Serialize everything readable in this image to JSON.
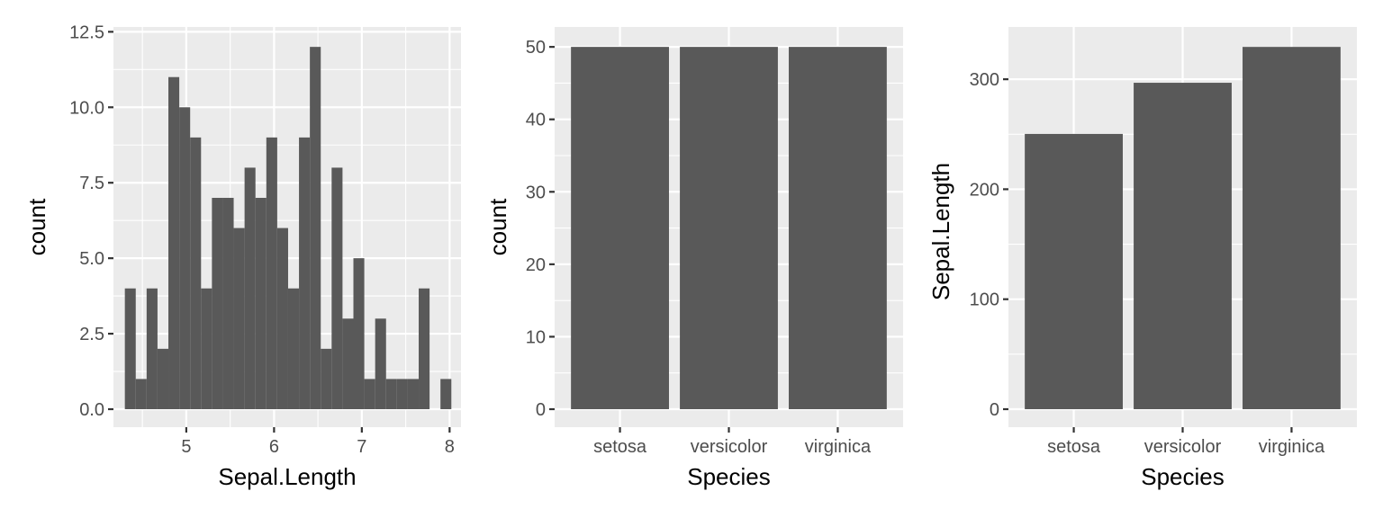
{
  "chart_data": [
    {
      "type": "bar",
      "subtype": "histogram",
      "xlabel": "Sepal.Length",
      "ylabel": "count",
      "xlim": [
        4.17,
        8.13
      ],
      "ylim": [
        0,
        12.6
      ],
      "x_ticks": [
        5,
        6,
        7,
        8
      ],
      "x_tick_labels": [
        "5",
        "6",
        "7",
        "8"
      ],
      "y_ticks": [
        0,
        2.5,
        5,
        7.5,
        10,
        12.5
      ],
      "y_tick_labels": [
        "0.0",
        "2.5",
        "5.0",
        "7.5",
        "10.0",
        "12.5"
      ],
      "bins_start": 4.3,
      "bin_width": 0.124,
      "values": [
        4,
        1,
        4,
        2,
        11,
        10,
        9,
        4,
        7,
        7,
        6,
        8,
        7,
        9,
        6,
        4,
        9,
        12,
        2,
        8,
        3,
        5,
        1,
        3,
        1,
        1,
        1,
        4,
        0,
        1
      ],
      "grid": true
    },
    {
      "type": "bar",
      "xlabel": "Species",
      "ylabel": "count",
      "categories": [
        "setosa",
        "versicolor",
        "virginica"
      ],
      "values": [
        50,
        50,
        50
      ],
      "ylim": [
        0,
        52.5
      ],
      "y_ticks": [
        0,
        10,
        20,
        30,
        40,
        50
      ],
      "y_tick_labels": [
        "0",
        "10",
        "20",
        "30",
        "40",
        "50"
      ],
      "grid": true
    },
    {
      "type": "bar",
      "xlabel": "Species",
      "ylabel": "Sepal.Length",
      "categories": [
        "setosa",
        "versicolor",
        "virginica"
      ],
      "values": [
        250.3,
        296.8,
        329.4
      ],
      "ylim": [
        0,
        345.9
      ],
      "y_ticks": [
        0,
        100,
        200,
        300
      ],
      "y_tick_labels": [
        "0",
        "100",
        "200",
        "300"
      ],
      "grid": true
    }
  ]
}
